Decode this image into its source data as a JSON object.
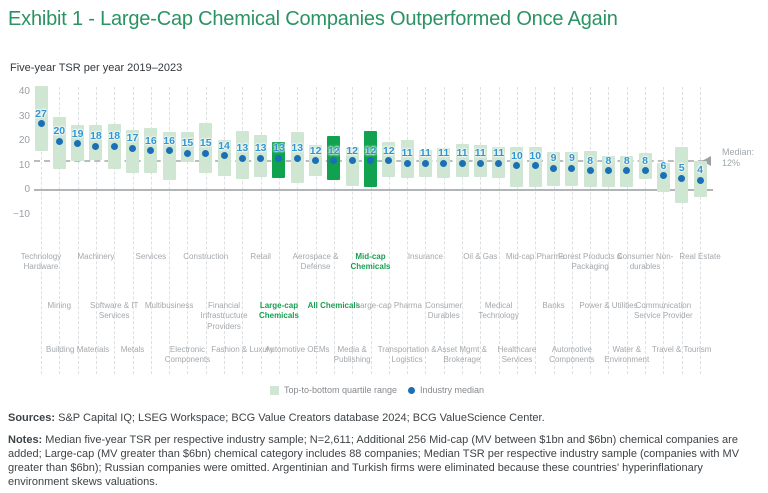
{
  "page": {
    "title": "Exhibit 1 - Large-Cap Chemical Companies Outperformed Once Again",
    "sources_label": "Sources:",
    "sources_text": " S&P Capital IQ; LSEG Workspace; BCG Value Creators database 2024; BCG ValueScience Center.",
    "notes_label": "Notes:",
    "notes_text": " Median five-year TSR per respective industry sample; N=2,611; Additional 256 Mid-cap (MV between $1bn and $6bn) chemical companies are added; Large-cap (MV greater than $6bn) chemical category includes 88 companies; Median TSR per respective industry sample (companies with MV greater than $6bn); Russian companies were omitted. Argentinian and Turkish firms were eliminated because these countries' hyperinflationary environment skews valuations."
  },
  "chart_data": {
    "type": "range-bar-with-median-dots",
    "title": "Five-year TSR per year 2019–2023",
    "y_ticks": [
      40,
      30,
      20,
      10,
      0,
      -10
    ],
    "ylim": [
      -13,
      44
    ],
    "grid": "vertical-dashed",
    "legend_position": "bottom-center",
    "median_line": {
      "value": 12,
      "label": [
        "Median:",
        "12%"
      ]
    },
    "legend": [
      {
        "swatch": "square",
        "label": "Top-to-bottom quartile range"
      },
      {
        "swatch": "dot",
        "label": "Industry median"
      }
    ],
    "colors": {
      "title_green": "#2B9363",
      "highlight_green": "#10A24E",
      "quartile_green": "#CFE6D3",
      "median_dot_blue": "#1B6FB5",
      "value_label_blue": "#2F95D3",
      "chem_label_green": "#17A050",
      "axis_gray": "#9BA0A5"
    },
    "series": [
      {
        "name": "Technology Hardware",
        "median": 27,
        "low": 16,
        "high": 42.5,
        "highlight": false
      },
      {
        "name": "Mining",
        "median": 20,
        "low": 8.5,
        "high": 30,
        "highlight": false
      },
      {
        "name": "Building Materials",
        "median": 19,
        "low": 12,
        "high": 26.5,
        "highlight": false
      },
      {
        "name": "Machinery",
        "median": 18,
        "low": 12.5,
        "high": 26.5,
        "highlight": false
      },
      {
        "name": "Software & IT Services",
        "median": 18,
        "low": 8.5,
        "high": 27,
        "highlight": false
      },
      {
        "name": "Metals",
        "median": 17,
        "low": 7,
        "high": 24.5,
        "highlight": false
      },
      {
        "name": "Services",
        "median": 16,
        "low": 7,
        "high": 25.5,
        "highlight": false
      },
      {
        "name": "Multibusiness",
        "median": 16,
        "low": 4,
        "high": 23.5,
        "highlight": false
      },
      {
        "name": "Electronic Components",
        "median": 15,
        "low": 11.5,
        "high": 23.5,
        "highlight": false
      },
      {
        "name": "Construction",
        "median": 15,
        "low": 7,
        "high": 27.5,
        "highlight": false
      },
      {
        "name": "Financial Infrastructure Providers",
        "median": 14,
        "low": 6,
        "high": 20.5,
        "highlight": false
      },
      {
        "name": "Fashion & Luxury",
        "median": 13,
        "low": 4.5,
        "high": 24,
        "highlight": false
      },
      {
        "name": "Retail",
        "median": 13,
        "low": 5.5,
        "high": 22.5,
        "highlight": false
      },
      {
        "name": "Large-cap Chemicals",
        "median": 13,
        "low": 5,
        "high": 19.5,
        "highlight": true
      },
      {
        "name": "Automotive OEMs",
        "median": 13,
        "low": 3,
        "high": 23.5,
        "highlight": false
      },
      {
        "name": "Aerospace & Defense",
        "median": 12,
        "low": 6,
        "high": 18.5,
        "highlight": false
      },
      {
        "name": "All Chemicals",
        "median": 12,
        "low": 4,
        "high": 22,
        "highlight": true
      },
      {
        "name": "Media & Publishing",
        "median": 12,
        "low": 1.7,
        "high": 17.7,
        "highlight": false
      },
      {
        "name": "Mid-cap Chemicals",
        "median": 12,
        "low": 1.5,
        "high": 24,
        "highlight": true
      },
      {
        "name": "Large-cap Pharma",
        "median": 12,
        "low": 5.5,
        "high": 19.5,
        "highlight": false
      },
      {
        "name": "Transportation & Logistics",
        "median": 11,
        "low": 5,
        "high": 20.5,
        "highlight": false
      },
      {
        "name": "Insurance",
        "median": 11,
        "low": 5.5,
        "high": 16.5,
        "highlight": false
      },
      {
        "name": "Consumer Durables",
        "median": 11,
        "low": 5,
        "high": 17,
        "highlight": false
      },
      {
        "name": "Asset Mgmt & Brokerage",
        "median": 11,
        "low": 5.5,
        "high": 19,
        "highlight": false
      },
      {
        "name": "Oil & Gas",
        "median": 11,
        "low": 5.5,
        "high": 18.5,
        "highlight": false
      },
      {
        "name": "Medical Technology",
        "median": 11,
        "low": 5,
        "high": 17.5,
        "highlight": false
      },
      {
        "name": "Healthcare Services",
        "median": 10,
        "low": 1.5,
        "high": 17.5,
        "highlight": false
      },
      {
        "name": "Mid-cap Pharma",
        "median": 10,
        "low": 1.5,
        "high": 17.5,
        "highlight": false
      },
      {
        "name": "Banks",
        "median": 9,
        "low": 1.7,
        "high": 15.5,
        "highlight": false
      },
      {
        "name": "Automotive Components",
        "median": 9,
        "low": 1.7,
        "high": 15.5,
        "highlight": false
      },
      {
        "name": "Forest Products & Packaging",
        "median": 8,
        "low": 1.5,
        "high": 16,
        "highlight": false
      },
      {
        "name": "Power & Utilities",
        "median": 8,
        "low": 1.5,
        "high": 14,
        "highlight": false
      },
      {
        "name": "Water & Environment",
        "median": 8,
        "low": 1.5,
        "high": 14,
        "highlight": false
      },
      {
        "name": "Consumer Non-durables",
        "median": 8,
        "low": 4.5,
        "high": 15,
        "highlight": false
      },
      {
        "name": "Communication Service Provider",
        "median": 6,
        "low": -0.7,
        "high": 11,
        "highlight": false
      },
      {
        "name": "Travel & Tourism",
        "median": 5,
        "low": -5,
        "high": 17.5,
        "highlight": false
      },
      {
        "name": "Real Estate",
        "median": 4,
        "low": -2.7,
        "high": 12,
        "highlight": false
      }
    ]
  }
}
